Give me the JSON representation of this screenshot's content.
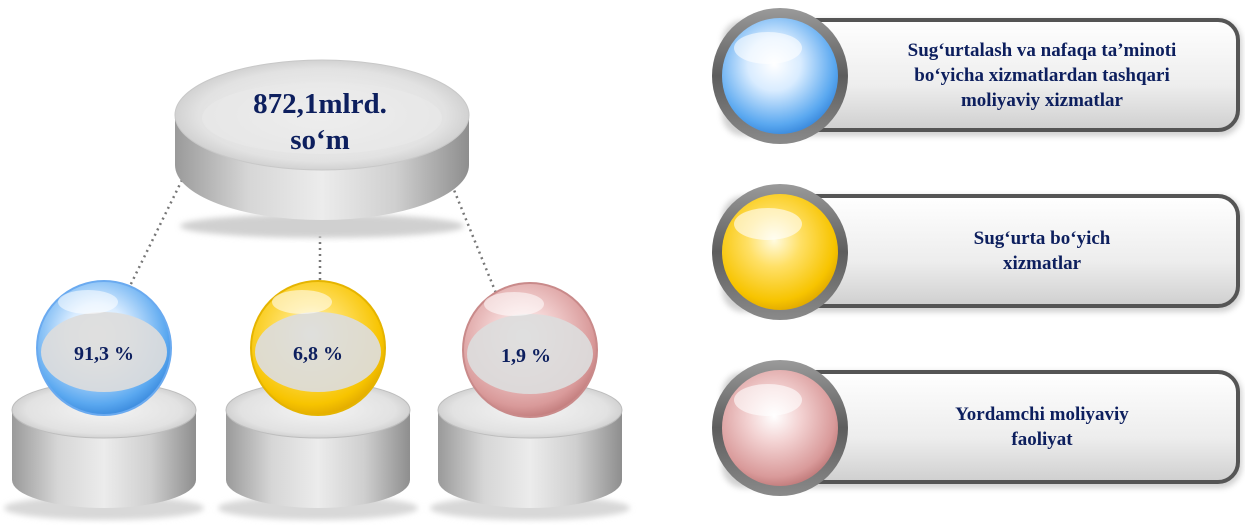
{
  "total": {
    "line1": "872,1mlrd.",
    "line2": "so‘m"
  },
  "segments": [
    {
      "label": "91,3 %",
      "value": 91.3,
      "color": "blue"
    },
    {
      "label": "6,8 %",
      "value": 6.8,
      "color": "yellow"
    },
    {
      "label": "1,9 %",
      "value": 1.9,
      "color": "pink"
    }
  ],
  "legend": [
    {
      "color": "blue",
      "lines": [
        "Sug‘urtalash va nafaqa ta’minoti",
        "bo‘yicha xizmatlardan tashqari",
        "moliyaviy xizmatlar"
      ]
    },
    {
      "color": "yellow",
      "lines": [
        "Sug‘urta bo‘yich",
        "xizmatlar"
      ]
    },
    {
      "color": "pink",
      "lines": [
        "Yordamchi moliyaviy",
        "faoliyat"
      ]
    }
  ],
  "colors": {
    "blue": "#5aa8f0",
    "yellow": "#f7c400",
    "pink": "#d99a9a",
    "text": "#0d1f5e"
  }
}
